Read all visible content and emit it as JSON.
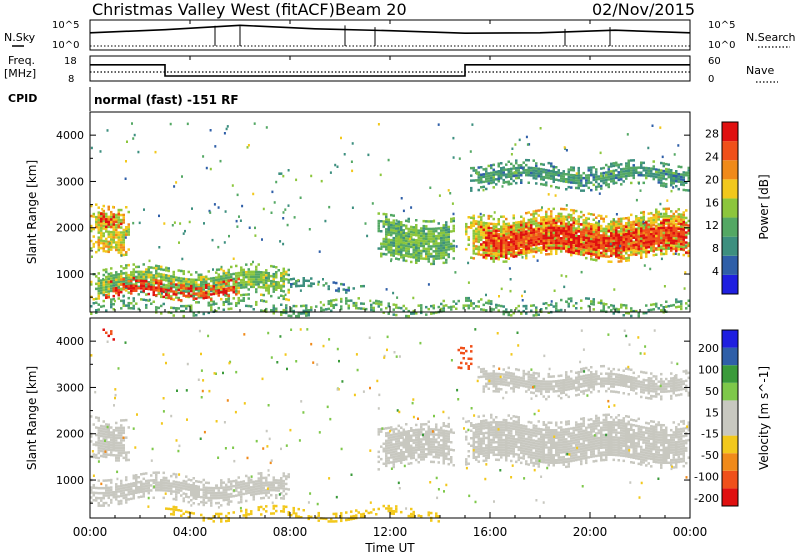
{
  "header": {
    "title": "Christmas Valley West (fitACF)",
    "beam": "Beam 20",
    "date": "02/Nov/2015"
  },
  "top_panels": {
    "nsky_label": "N.Sky",
    "nsky_ticks": [
      "10^5",
      "10^0"
    ],
    "nsearch_label": "N.Search",
    "nsearch_ticks": [
      "10^5",
      "10^0"
    ],
    "freq_label": "Freq.",
    "freq_unit": "[MHz]",
    "freq_ticks": [
      "18",
      "8"
    ],
    "nave_label": "Nave",
    "nave_ticks": [
      "60",
      "0"
    ],
    "cpid_label": "CPID",
    "cpid_value": "normal (fast) -151 RF"
  },
  "x_axis": {
    "label": "Time UT",
    "ticks": [
      "00:00",
      "04:00",
      "08:00",
      "12:00",
      "16:00",
      "20:00",
      "00:00"
    ]
  },
  "colors": {
    "power_scale": [
      "#1f1fe0",
      "#2f5fa8",
      "#3d8f7f",
      "#54a864",
      "#8cc63c",
      "#f2c81c",
      "#f08a1a",
      "#f0501a",
      "#e01010"
    ],
    "velocity_scale": [
      "#e01010",
      "#f0501a",
      "#f08a1a",
      "#f2c81c",
      "#c8c8c0",
      "#c8c8c0",
      "#7ec84a",
      "#3a9a3a",
      "#2f5fa8",
      "#1f1fe0"
    ]
  },
  "chart_data": [
    {
      "type": "line",
      "title": "N.Sky / N.Search",
      "x": [
        0,
        3,
        6,
        9,
        12,
        15,
        18,
        21,
        24
      ],
      "series": [
        {
          "name": "N.Sky",
          "values": [
            1000,
            5000,
            50000,
            8000,
            3000,
            800,
            1000,
            4000,
            1000
          ]
        },
        {
          "name": "N.Search",
          "values": [
            1,
            1,
            1,
            1,
            1,
            1,
            1,
            1,
            1
          ]
        }
      ],
      "ylim": [
        1,
        100000
      ],
      "yscale": "log"
    },
    {
      "type": "line",
      "title": "Freq. [MHz] / Nave",
      "x": [
        0,
        3,
        3,
        15,
        15,
        24
      ],
      "series": [
        {
          "name": "Freq.",
          "values": [
            14.5,
            14.5,
            10,
            10,
            14.5,
            14.5
          ]
        },
        {
          "name": "Nave",
          "values": [
            21,
            21,
            21,
            21,
            21,
            21
          ]
        }
      ],
      "ylim": [
        8,
        18
      ]
    },
    {
      "type": "heatmap",
      "title": "",
      "xlabel": "Time UT",
      "ylabel": "Slant Range [km]",
      "xlim": [
        0,
        24
      ],
      "ylim": [
        180,
        4500
      ],
      "yticks": [
        1000,
        2000,
        3000,
        4000
      ],
      "colorbar": {
        "label": "Power [dB]",
        "ticks": [
          4,
          8,
          12,
          16,
          20,
          24,
          28
        ],
        "range": [
          0,
          30
        ]
      },
      "regions": [
        {
          "t0": 0.0,
          "t1": 1.6,
          "r0": 1500,
          "r1": 2550,
          "value": 18
        },
        {
          "t0": 0.4,
          "t1": 1.3,
          "r0": 2100,
          "r1": 2400,
          "value": 27
        },
        {
          "t0": 0.0,
          "t1": 8.0,
          "r0": 500,
          "r1": 1150,
          "value": 14
        },
        {
          "t0": 0.6,
          "t1": 6.0,
          "r0": 500,
          "r1": 850,
          "value": 26
        },
        {
          "t0": 8.0,
          "t1": 11.0,
          "r0": 650,
          "r1": 850,
          "value": 8
        },
        {
          "t0": 11.5,
          "t1": 14.6,
          "r0": 1300,
          "r1": 2250,
          "value": 13
        },
        {
          "t0": 15.0,
          "t1": 24.0,
          "r0": 1350,
          "r1": 2350,
          "value": 18
        },
        {
          "t0": 15.6,
          "t1": 24.0,
          "r0": 1450,
          "r1": 2100,
          "value": 27
        },
        {
          "t0": 15.2,
          "t1": 24.0,
          "r0": 2900,
          "r1": 3400,
          "value": 10
        },
        {
          "t0": 0.0,
          "t1": 24.0,
          "r0": 200,
          "r1": 420,
          "value": 12
        }
      ]
    },
    {
      "type": "heatmap",
      "title": "",
      "xlabel": "Time UT",
      "ylabel": "Slant Range [km]",
      "xlim": [
        0,
        24
      ],
      "ylim": [
        180,
        4500
      ],
      "yticks": [
        1000,
        2000,
        3000,
        4000
      ],
      "colorbar": {
        "label": "Velocity [m s^-1]",
        "ticks": [
          200,
          100,
          50,
          15,
          -15,
          -50,
          -100,
          -200
        ],
        "range": [
          -250,
          250
        ]
      },
      "regions": [
        {
          "t0": 0.0,
          "t1": 1.6,
          "r0": 1500,
          "r1": 2400,
          "value": 0
        },
        {
          "t0": 0.0,
          "t1": 8.0,
          "r0": 550,
          "r1": 1100,
          "value": 0
        },
        {
          "t0": 11.5,
          "t1": 14.6,
          "r0": 1300,
          "r1": 2200,
          "value": 0
        },
        {
          "t0": 15.0,
          "t1": 24.0,
          "r0": 1350,
          "r1": 2350,
          "value": 0
        },
        {
          "t0": 15.5,
          "t1": 24.0,
          "r0": 2850,
          "r1": 3400,
          "value": 0
        },
        {
          "t0": 3.0,
          "t1": 14.0,
          "r0": 200,
          "r1": 380,
          "value": -40
        },
        {
          "t0": 0.5,
          "t1": 1.0,
          "r0": 4000,
          "r1": 4250,
          "value": -200
        },
        {
          "t0": 14.7,
          "t1": 15.2,
          "r0": 3500,
          "r1": 4000,
          "value": -180
        }
      ]
    }
  ]
}
